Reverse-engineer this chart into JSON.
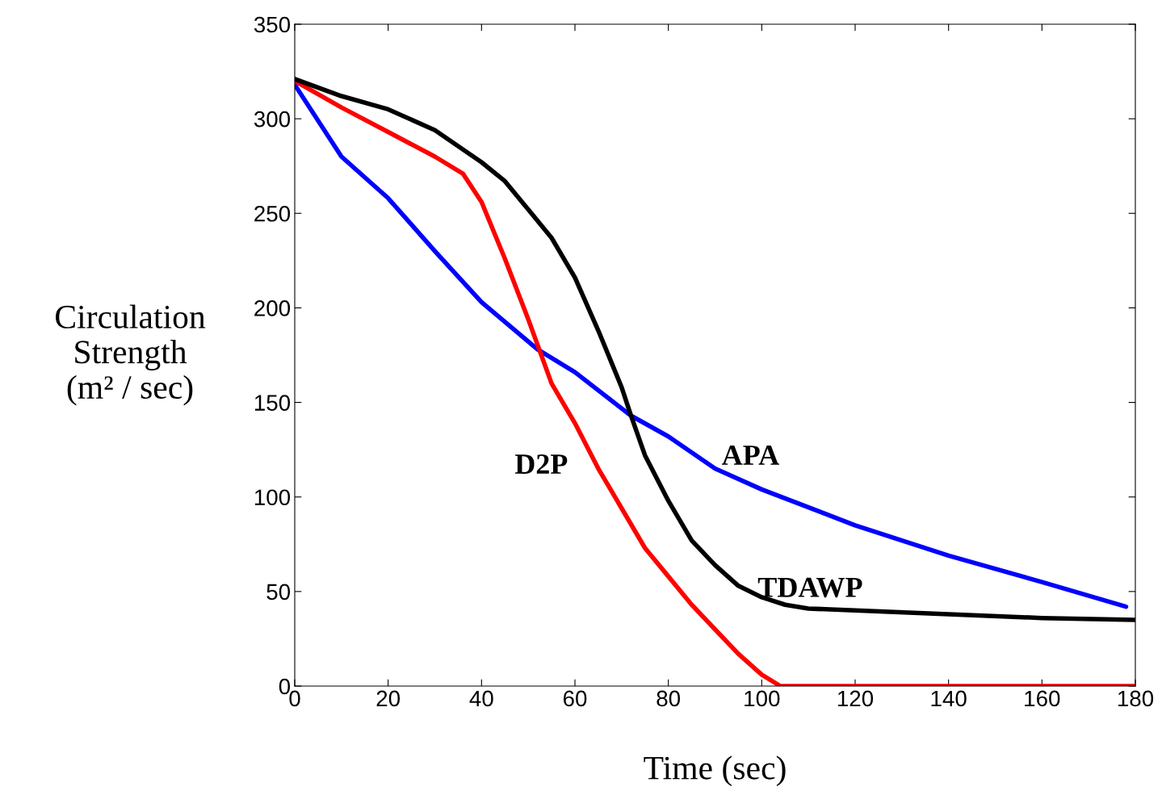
{
  "chart_data": {
    "type": "line",
    "xlabel": "Time (sec)",
    "ylabel": "Circulation\nStrength\n(m² / sec)",
    "xlim": [
      0,
      180
    ],
    "ylim": [
      0,
      350
    ],
    "xticks": [
      0,
      20,
      40,
      60,
      80,
      100,
      120,
      140,
      160,
      180
    ],
    "yticks": [
      0,
      50,
      100,
      150,
      200,
      250,
      300,
      350
    ],
    "grid": false,
    "legend": false,
    "line_style": "solid",
    "series": [
      {
        "name": "APA",
        "color": "#0000ff",
        "x": [
          0,
          10,
          20,
          30,
          40,
          52,
          60,
          72,
          80,
          90,
          100,
          120,
          140,
          160,
          178
        ],
        "values": [
          318,
          280,
          258,
          230,
          203,
          178,
          166,
          143,
          132,
          115,
          104,
          85,
          69,
          55,
          42
        ]
      },
      {
        "name": "D2P",
        "color": "#ff0000",
        "x": [
          0,
          10,
          20,
          30,
          36,
          40,
          45,
          50,
          55,
          60,
          65,
          70,
          75,
          80,
          85,
          90,
          95,
          100,
          104,
          120,
          140,
          160,
          180
        ],
        "values": [
          320,
          306,
          293,
          280,
          271,
          256,
          226,
          194,
          160,
          139,
          115,
          94,
          73,
          58,
          43,
          30,
          17,
          6,
          0,
          0,
          0,
          0,
          0
        ]
      },
      {
        "name": "TDAWP",
        "color": "#000000",
        "x": [
          0,
          10,
          20,
          30,
          40,
          45,
          50,
          55,
          60,
          65,
          70,
          72,
          75,
          80,
          85,
          90,
          95,
          100,
          105,
          110,
          120,
          140,
          160,
          180
        ],
        "values": [
          321,
          312,
          305,
          294,
          277,
          267,
          252,
          237,
          216,
          188,
          158,
          143,
          122,
          98,
          77,
          64,
          53,
          47,
          43,
          41,
          40,
          38,
          36,
          35
        ]
      }
    ]
  }
}
